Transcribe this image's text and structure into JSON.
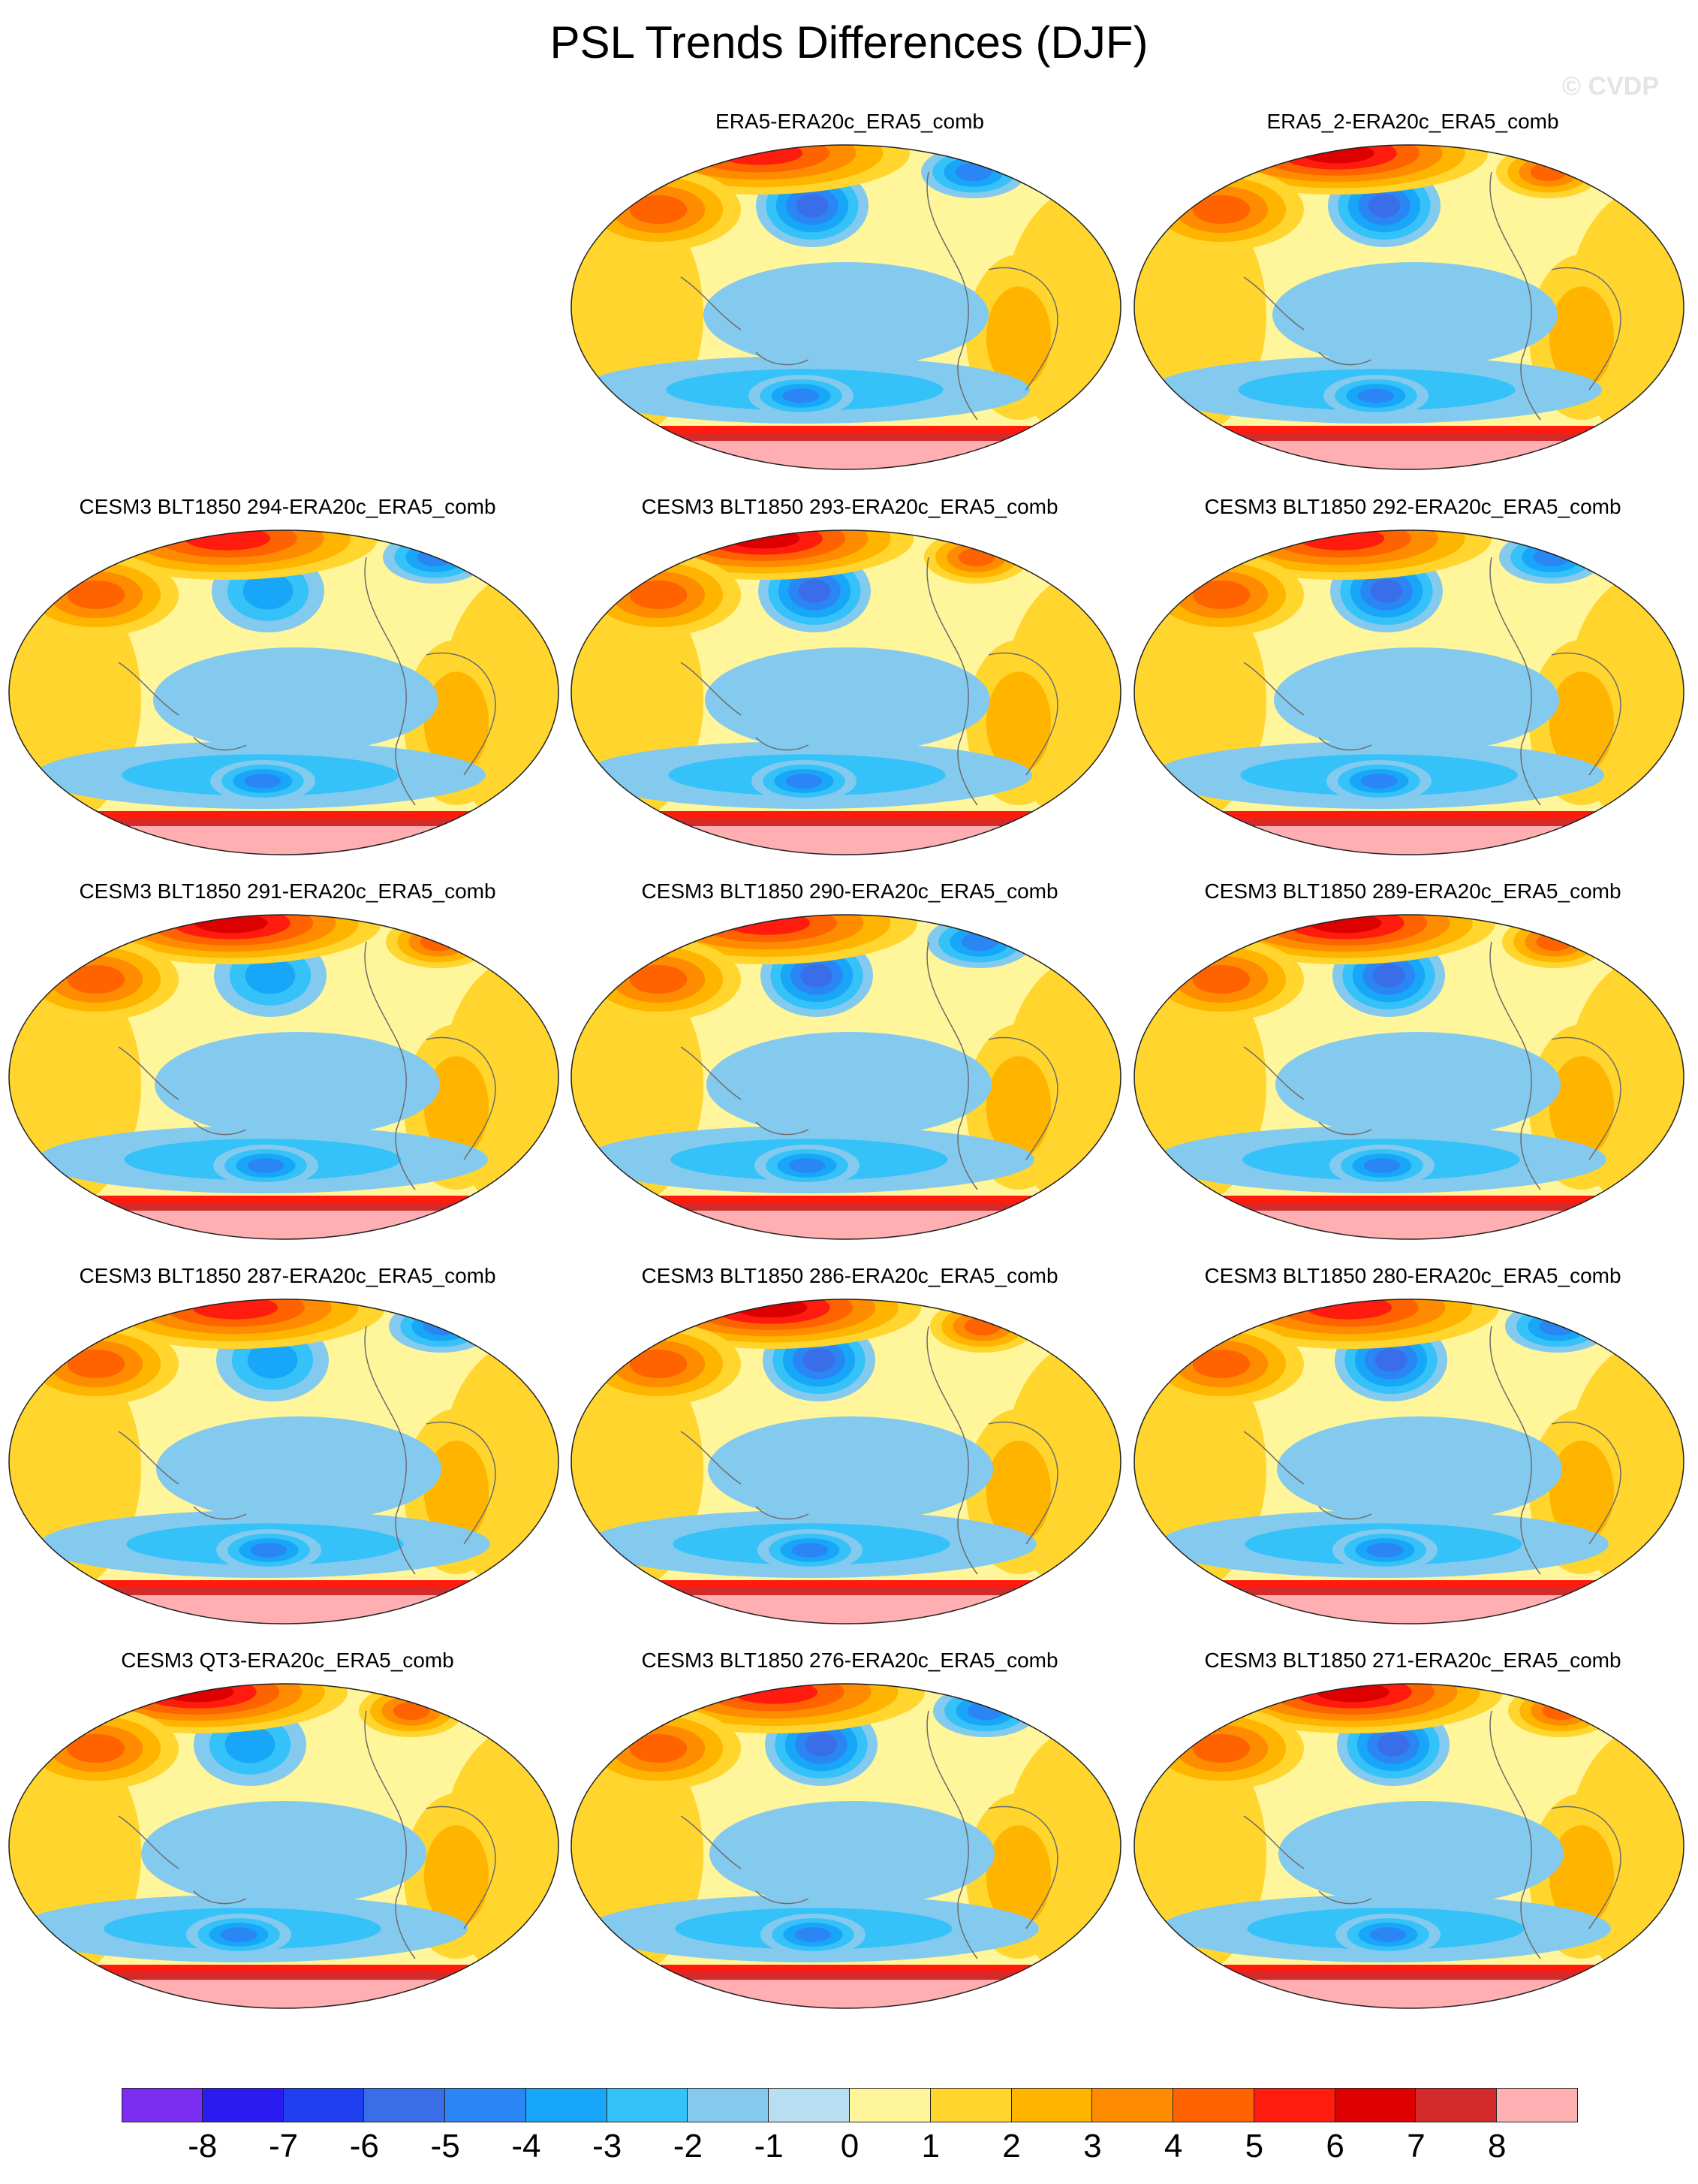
{
  "title": "PSL Trends Differences (DJF)",
  "watermark": "© CVDP",
  "panels": [
    {
      "label": "ERA5-ERA20c_ERA5_comb",
      "variant": 0
    },
    {
      "label": "ERA5_2-ERA20c_ERA5_comb",
      "variant": 1
    },
    {
      "label": "CESM3 BLT1850 294-ERA20c_ERA5_comb",
      "variant": 2
    },
    {
      "label": "CESM3 BLT1850 293-ERA20c_ERA5_comb",
      "variant": 3
    },
    {
      "label": "CESM3 BLT1850 292-ERA20c_ERA5_comb",
      "variant": 4
    },
    {
      "label": "CESM3 BLT1850 291-ERA20c_ERA5_comb",
      "variant": 5
    },
    {
      "label": "CESM3 BLT1850 290-ERA20c_ERA5_comb",
      "variant": 6
    },
    {
      "label": "CESM3 BLT1850 289-ERA20c_ERA5_comb",
      "variant": 7
    },
    {
      "label": "CESM3 BLT1850 287-ERA20c_ERA5_comb",
      "variant": 8
    },
    {
      "label": "CESM3 BLT1850 286-ERA20c_ERA5_comb",
      "variant": 9
    },
    {
      "label": "CESM3 BLT1850 280-ERA20c_ERA5_comb",
      "variant": 10
    },
    {
      "label": "CESM3 QT3-ERA20c_ERA5_comb",
      "variant": 11
    },
    {
      "label": "CESM3 BLT1850 276-ERA20c_ERA5_comb",
      "variant": 12
    },
    {
      "label": "CESM3 BLT1850 271-ERA20c_ERA5_comb",
      "variant": 13
    }
  ],
  "colorbar": {
    "labels": [
      "-8",
      "-7",
      "-6",
      "-5",
      "-4",
      "-3",
      "-2",
      "-1",
      "0",
      "1",
      "2",
      "3",
      "4",
      "5",
      "6",
      "7",
      "8"
    ],
    "colors": [
      "#7b2ef2",
      "#2a1cf0",
      "#1f3ef0",
      "#3a6ee8",
      "#2a86f4",
      "#17a6f8",
      "#35c2f8",
      "#84caee",
      "#b8def2",
      "#fff59a",
      "#ffd52e",
      "#ffb400",
      "#ff8c00",
      "#ff6300",
      "#ff1c0e",
      "#dd0000",
      "#d52a2a",
      "#ffafb2"
    ]
  }
}
